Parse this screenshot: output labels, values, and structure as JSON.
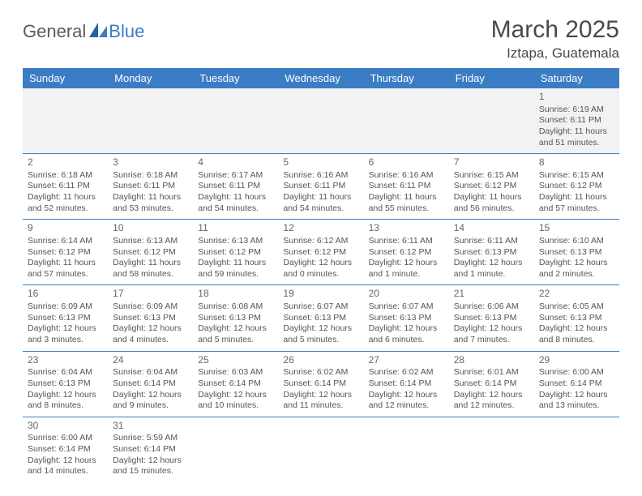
{
  "logo": {
    "text1": "General",
    "text2": "Blue"
  },
  "title": "March 2025",
  "location": "Iztapa, Guatemala",
  "colors": {
    "header_bg": "#3b7dc4",
    "header_text": "#ffffff",
    "cell_border": "#3b7dc4",
    "first_row_bg": "#f2f2f2",
    "text": "#555555",
    "title_text": "#4a4a4a"
  },
  "fonts": {
    "title_size": 30,
    "location_size": 17,
    "header_size": 13,
    "cell_size": 10.5
  },
  "weekdays": [
    "Sunday",
    "Monday",
    "Tuesday",
    "Wednesday",
    "Thursday",
    "Friday",
    "Saturday"
  ],
  "rows": [
    [
      null,
      null,
      null,
      null,
      null,
      null,
      {
        "day": "1",
        "sunrise": "Sunrise: 6:19 AM",
        "sunset": "Sunset: 6:11 PM",
        "daylight1": "Daylight: 11 hours",
        "daylight2": "and 51 minutes."
      }
    ],
    [
      {
        "day": "2",
        "sunrise": "Sunrise: 6:18 AM",
        "sunset": "Sunset: 6:11 PM",
        "daylight1": "Daylight: 11 hours",
        "daylight2": "and 52 minutes."
      },
      {
        "day": "3",
        "sunrise": "Sunrise: 6:18 AM",
        "sunset": "Sunset: 6:11 PM",
        "daylight1": "Daylight: 11 hours",
        "daylight2": "and 53 minutes."
      },
      {
        "day": "4",
        "sunrise": "Sunrise: 6:17 AM",
        "sunset": "Sunset: 6:11 PM",
        "daylight1": "Daylight: 11 hours",
        "daylight2": "and 54 minutes."
      },
      {
        "day": "5",
        "sunrise": "Sunrise: 6:16 AM",
        "sunset": "Sunset: 6:11 PM",
        "daylight1": "Daylight: 11 hours",
        "daylight2": "and 54 minutes."
      },
      {
        "day": "6",
        "sunrise": "Sunrise: 6:16 AM",
        "sunset": "Sunset: 6:11 PM",
        "daylight1": "Daylight: 11 hours",
        "daylight2": "and 55 minutes."
      },
      {
        "day": "7",
        "sunrise": "Sunrise: 6:15 AM",
        "sunset": "Sunset: 6:12 PM",
        "daylight1": "Daylight: 11 hours",
        "daylight2": "and 56 minutes."
      },
      {
        "day": "8",
        "sunrise": "Sunrise: 6:15 AM",
        "sunset": "Sunset: 6:12 PM",
        "daylight1": "Daylight: 11 hours",
        "daylight2": "and 57 minutes."
      }
    ],
    [
      {
        "day": "9",
        "sunrise": "Sunrise: 6:14 AM",
        "sunset": "Sunset: 6:12 PM",
        "daylight1": "Daylight: 11 hours",
        "daylight2": "and 57 minutes."
      },
      {
        "day": "10",
        "sunrise": "Sunrise: 6:13 AM",
        "sunset": "Sunset: 6:12 PM",
        "daylight1": "Daylight: 11 hours",
        "daylight2": "and 58 minutes."
      },
      {
        "day": "11",
        "sunrise": "Sunrise: 6:13 AM",
        "sunset": "Sunset: 6:12 PM",
        "daylight1": "Daylight: 11 hours",
        "daylight2": "and 59 minutes."
      },
      {
        "day": "12",
        "sunrise": "Sunrise: 6:12 AM",
        "sunset": "Sunset: 6:12 PM",
        "daylight1": "Daylight: 12 hours",
        "daylight2": "and 0 minutes."
      },
      {
        "day": "13",
        "sunrise": "Sunrise: 6:11 AM",
        "sunset": "Sunset: 6:12 PM",
        "daylight1": "Daylight: 12 hours",
        "daylight2": "and 1 minute."
      },
      {
        "day": "14",
        "sunrise": "Sunrise: 6:11 AM",
        "sunset": "Sunset: 6:13 PM",
        "daylight1": "Daylight: 12 hours",
        "daylight2": "and 1 minute."
      },
      {
        "day": "15",
        "sunrise": "Sunrise: 6:10 AM",
        "sunset": "Sunset: 6:13 PM",
        "daylight1": "Daylight: 12 hours",
        "daylight2": "and 2 minutes."
      }
    ],
    [
      {
        "day": "16",
        "sunrise": "Sunrise: 6:09 AM",
        "sunset": "Sunset: 6:13 PM",
        "daylight1": "Daylight: 12 hours",
        "daylight2": "and 3 minutes."
      },
      {
        "day": "17",
        "sunrise": "Sunrise: 6:09 AM",
        "sunset": "Sunset: 6:13 PM",
        "daylight1": "Daylight: 12 hours",
        "daylight2": "and 4 minutes."
      },
      {
        "day": "18",
        "sunrise": "Sunrise: 6:08 AM",
        "sunset": "Sunset: 6:13 PM",
        "daylight1": "Daylight: 12 hours",
        "daylight2": "and 5 minutes."
      },
      {
        "day": "19",
        "sunrise": "Sunrise: 6:07 AM",
        "sunset": "Sunset: 6:13 PM",
        "daylight1": "Daylight: 12 hours",
        "daylight2": "and 5 minutes."
      },
      {
        "day": "20",
        "sunrise": "Sunrise: 6:07 AM",
        "sunset": "Sunset: 6:13 PM",
        "daylight1": "Daylight: 12 hours",
        "daylight2": "and 6 minutes."
      },
      {
        "day": "21",
        "sunrise": "Sunrise: 6:06 AM",
        "sunset": "Sunset: 6:13 PM",
        "daylight1": "Daylight: 12 hours",
        "daylight2": "and 7 minutes."
      },
      {
        "day": "22",
        "sunrise": "Sunrise: 6:05 AM",
        "sunset": "Sunset: 6:13 PM",
        "daylight1": "Daylight: 12 hours",
        "daylight2": "and 8 minutes."
      }
    ],
    [
      {
        "day": "23",
        "sunrise": "Sunrise: 6:04 AM",
        "sunset": "Sunset: 6:13 PM",
        "daylight1": "Daylight: 12 hours",
        "daylight2": "and 8 minutes."
      },
      {
        "day": "24",
        "sunrise": "Sunrise: 6:04 AM",
        "sunset": "Sunset: 6:14 PM",
        "daylight1": "Daylight: 12 hours",
        "daylight2": "and 9 minutes."
      },
      {
        "day": "25",
        "sunrise": "Sunrise: 6:03 AM",
        "sunset": "Sunset: 6:14 PM",
        "daylight1": "Daylight: 12 hours",
        "daylight2": "and 10 minutes."
      },
      {
        "day": "26",
        "sunrise": "Sunrise: 6:02 AM",
        "sunset": "Sunset: 6:14 PM",
        "daylight1": "Daylight: 12 hours",
        "daylight2": "and 11 minutes."
      },
      {
        "day": "27",
        "sunrise": "Sunrise: 6:02 AM",
        "sunset": "Sunset: 6:14 PM",
        "daylight1": "Daylight: 12 hours",
        "daylight2": "and 12 minutes."
      },
      {
        "day": "28",
        "sunrise": "Sunrise: 6:01 AM",
        "sunset": "Sunset: 6:14 PM",
        "daylight1": "Daylight: 12 hours",
        "daylight2": "and 12 minutes."
      },
      {
        "day": "29",
        "sunrise": "Sunrise: 6:00 AM",
        "sunset": "Sunset: 6:14 PM",
        "daylight1": "Daylight: 12 hours",
        "daylight2": "and 13 minutes."
      }
    ],
    [
      {
        "day": "30",
        "sunrise": "Sunrise: 6:00 AM",
        "sunset": "Sunset: 6:14 PM",
        "daylight1": "Daylight: 12 hours",
        "daylight2": "and 14 minutes."
      },
      {
        "day": "31",
        "sunrise": "Sunrise: 5:59 AM",
        "sunset": "Sunset: 6:14 PM",
        "daylight1": "Daylight: 12 hours",
        "daylight2": "and 15 minutes."
      },
      null,
      null,
      null,
      null,
      null
    ]
  ]
}
